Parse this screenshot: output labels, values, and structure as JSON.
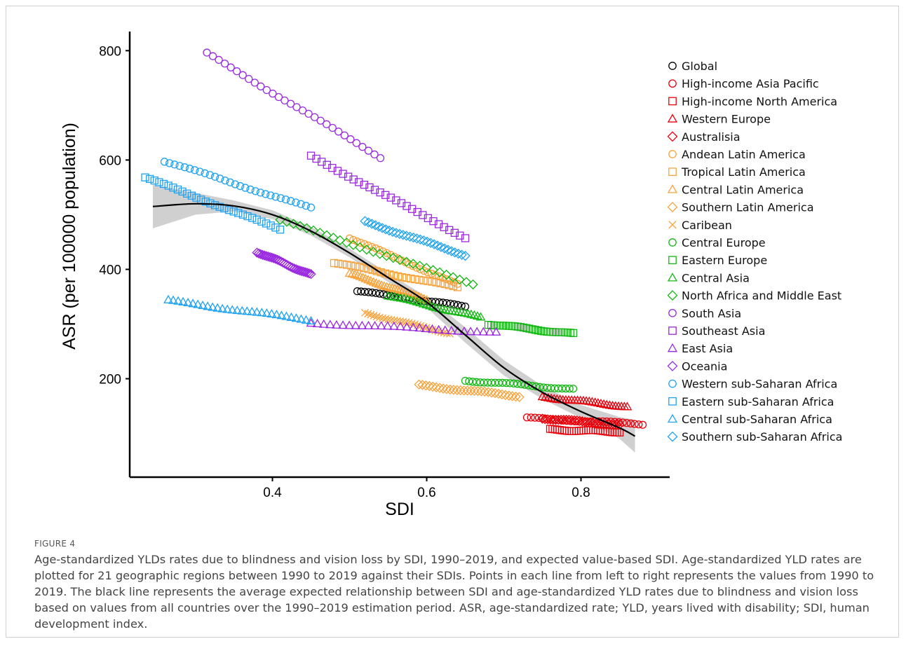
{
  "figure": {
    "label": "FIGURE 4",
    "caption": "Age-standardized YLDs rates due to blindness and vision loss by SDI, 1990–2019, and expected value-based SDI. Age-standardized YLD rates are plotted for 21 geographic regions between 1990 to 2019 against their SDIs. Points in each line from left to right represents the values from 1990 to 2019. The black line represents the average expected relationship between SDI and age-standardized YLD rates due to blindness and vision loss based on values from all countries over the 1990–2019 estimation period. ASR, age-standardized rate; YLD, years lived with disability; SDI, human development index."
  },
  "chart_data": {
    "type": "scatter",
    "xlabel": "SDI",
    "ylabel": "ASR (per 100000 population)",
    "xlim": [
      0.215,
      0.915
    ],
    "ylim": [
      20,
      835
    ],
    "xticks": [
      0.4,
      0.6,
      0.8
    ],
    "xtick_labels": [
      "0.4",
      "0.6",
      "0.8"
    ],
    "yticks": [
      200,
      400,
      600,
      800
    ],
    "ytick_labels": [
      "200",
      "400",
      "600",
      "800"
    ],
    "grid": false,
    "legend_position": "right",
    "points_per_series": 30,
    "series": [
      {
        "name": "Global",
        "color": "#000000",
        "marker": "circle",
        "x": [
          0.51,
          0.65
        ],
        "y": [
          360,
          332
        ]
      },
      {
        "name": "High-income Asia Pacific",
        "color": "#e8000b",
        "marker": "circle",
        "x": [
          0.73,
          0.88
        ],
        "y": [
          128,
          117
        ]
      },
      {
        "name": "High-income North America",
        "color": "#e8000b",
        "marker": "square",
        "x": [
          0.76,
          0.85
        ],
        "y": [
          107,
          103
        ]
      },
      {
        "name": "Western Europe",
        "color": "#e8000b",
        "marker": "triangle",
        "x": [
          0.75,
          0.86
        ],
        "y": [
          167,
          149
        ]
      },
      {
        "name": "Australisia",
        "color": "#e8000b",
        "marker": "diamond",
        "x": [
          0.75,
          0.85
        ],
        "y": [
          128,
          115
        ]
      },
      {
        "name": "Andean Latin America",
        "color": "#f7a23b",
        "marker": "circle",
        "x": [
          0.5,
          0.64
        ],
        "y": [
          458,
          372
        ]
      },
      {
        "name": "Tropical Latin America",
        "color": "#f7a23b",
        "marker": "square",
        "x": [
          0.48,
          0.64
        ],
        "y": [
          412,
          367
        ]
      },
      {
        "name": "Central Latin America",
        "color": "#f7a23b",
        "marker": "triangle",
        "x": [
          0.5,
          0.6
        ],
        "y": [
          392,
          345
        ]
      },
      {
        "name": "Southern Latin America",
        "color": "#f7a23b",
        "marker": "diamond",
        "x": [
          0.59,
          0.72
        ],
        "y": [
          188,
          168
        ]
      },
      {
        "name": "Caribean",
        "color": "#f7a23b",
        "marker": "cross",
        "x": [
          0.52,
          0.63
        ],
        "y": [
          320,
          283
        ]
      },
      {
        "name": "Central Europe",
        "color": "#14b814",
        "marker": "circle",
        "x": [
          0.65,
          0.79
        ],
        "y": [
          197,
          181
        ]
      },
      {
        "name": "Eastern Europe",
        "color": "#14b814",
        "marker": "square",
        "x": [
          0.68,
          0.79
        ],
        "y": [
          300,
          282
        ]
      },
      {
        "name": "Central Asia",
        "color": "#14b814",
        "marker": "triangle",
        "x": [
          0.55,
          0.67
        ],
        "y": [
          352,
          312
        ]
      },
      {
        "name": "North Africa and Middle East",
        "color": "#14b814",
        "marker": "diamond",
        "x": [
          0.41,
          0.66
        ],
        "y": [
          490,
          373
        ]
      },
      {
        "name": "South Asia",
        "color": "#9a29e0",
        "marker": "circle",
        "x": [
          0.315,
          0.54
        ],
        "y": [
          795,
          605
        ]
      },
      {
        "name": "Southeast Asia",
        "color": "#9a29e0",
        "marker": "square",
        "x": [
          0.45,
          0.65
        ],
        "y": [
          607,
          458
        ]
      },
      {
        "name": "East Asia",
        "color": "#9a29e0",
        "marker": "triangle",
        "x": [
          0.45,
          0.69
        ],
        "y": [
          302,
          285
        ]
      },
      {
        "name": "Oceania",
        "color": "#9a29e0",
        "marker": "diamond",
        "x": [
          0.38,
          0.45
        ],
        "y": [
          432,
          390
        ]
      },
      {
        "name": "Western sub-Saharan Africa",
        "color": "#1fa2f2",
        "marker": "circle",
        "x": [
          0.26,
          0.45
        ],
        "y": [
          598,
          512
        ]
      },
      {
        "name": "Eastern sub-Saharan Africa",
        "color": "#1fa2f2",
        "marker": "square",
        "x": [
          0.235,
          0.41
        ],
        "y": [
          568,
          473
        ]
      },
      {
        "name": "Central sub-Saharan Africa",
        "color": "#1fa2f2",
        "marker": "triangle",
        "x": [
          0.265,
          0.45
        ],
        "y": [
          343,
          307
        ]
      },
      {
        "name": "Southern sub-Saharan Africa",
        "color": "#1fa2f2",
        "marker": "diamond",
        "x": [
          0.52,
          0.65
        ],
        "y": [
          487,
          426
        ]
      }
    ],
    "expected_curve": {
      "color": "#000000",
      "x": [
        0.245,
        0.3,
        0.35,
        0.4,
        0.45,
        0.5,
        0.55,
        0.6,
        0.65,
        0.7,
        0.75,
        0.8,
        0.85,
        0.87
      ],
      "y": [
        515,
        520,
        516,
        500,
        470,
        430,
        385,
        340,
        280,
        220,
        175,
        140,
        110,
        95
      ],
      "band_halfwidth": [
        40,
        20,
        10,
        8,
        8,
        8,
        8,
        10,
        14,
        14,
        12,
        12,
        20,
        30
      ]
    }
  }
}
